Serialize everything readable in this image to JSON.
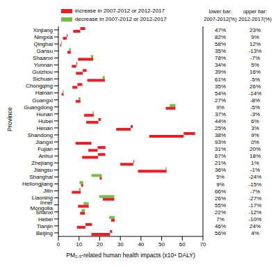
{
  "chart_data": {
    "type": "bar",
    "orientation": "horizontal",
    "grid": false,
    "legend": "top left",
    "xlabel": "PM₂.₅-related human health impacts (x10⁴ DALY)",
    "ylabel": "Province",
    "xlim": [
      0,
      70
    ],
    "xticks": [
      0,
      10,
      20,
      30,
      40,
      50,
      60,
      70
    ],
    "categories": [
      "Xinjiang",
      "Ningxia",
      "Qinghai",
      "Gansu",
      "Shaanxi",
      "Yunnan",
      "Guizhou",
      "Sichuan",
      "Chongqing",
      "Hainan",
      "Guangxi",
      "Guangdong",
      "Hunan",
      "Hubei",
      "Henan",
      "Shandong",
      "Jiangxi",
      "Fujian",
      "Anhui",
      "Zhejiang",
      "Jiangsu",
      "Shanghai",
      "Heilongjiang",
      "Jilin",
      "Liaoning",
      "Inner Mongolia",
      "Shanxi",
      "Hebei",
      "Tianjin",
      "Beijing"
    ],
    "lower_bar": [
      [
        7.2,
        10.6
      ],
      [
        2.2,
        4.0
      ],
      [
        0.9,
        1.4
      ],
      [
        4.4,
        6.0
      ],
      [
        9.5,
        16.9
      ],
      [
        6.5,
        8.7
      ],
      [
        8.5,
        11.8
      ],
      [
        14.0,
        22.5
      ],
      [
        6.8,
        9.2
      ],
      [
        1.6,
        2.5
      ],
      [
        8.4,
        10.7
      ],
      [
        52.0,
        56.7
      ],
      [
        12.5,
        17.1
      ],
      [
        13.5,
        19.4
      ],
      [
        28.0,
        35.0
      ],
      [
        44.0,
        60.7
      ],
      [
        8.3,
        16.0
      ],
      [
        14.5,
        19.0
      ],
      [
        11.5,
        19.2
      ],
      [
        30.0,
        36.3
      ],
      [
        38.5,
        52.4
      ],
      [
        20.0,
        21.0
      ],
      [
        11.0,
        12.0
      ],
      [
        6.5,
        10.8
      ],
      [
        21.5,
        27.1
      ],
      [
        9.5,
        14.7
      ],
      [
        10.5,
        12.8
      ],
      [
        25.5,
        27.3
      ],
      [
        9.0,
        13.1
      ],
      [
        16.0,
        25.0
      ]
    ],
    "upper_bar": [
      [
        10.6,
        13.0
      ],
      [
        4.0,
        4.4
      ],
      [
        1.4,
        1.6
      ],
      [
        6.0,
        5.2
      ],
      [
        16.9,
        15.7
      ],
      [
        8.7,
        9.1
      ],
      [
        11.8,
        13.7
      ],
      [
        22.5,
        21.4
      ],
      [
        9.2,
        11.6
      ],
      [
        2.5,
        2.1
      ],
      [
        10.7,
        9.8
      ],
      [
        56.7,
        53.9
      ],
      [
        17.1,
        16.6
      ],
      [
        19.4,
        20.6
      ],
      [
        35.0,
        36.0
      ],
      [
        60.7,
        66.2
      ],
      [
        16.0,
        16.0
      ],
      [
        19.0,
        22.8
      ],
      [
        19.2,
        22.7
      ],
      [
        36.3,
        36.7
      ],
      [
        52.4,
        51.9
      ],
      [
        21.0,
        16.0
      ],
      [
        12.0,
        10.2
      ],
      [
        10.8,
        10.0
      ],
      [
        27.1,
        19.8
      ],
      [
        14.7,
        12.2
      ],
      [
        12.8,
        11.3
      ],
      [
        27.3,
        24.6
      ],
      [
        13.1,
        16.3
      ],
      [
        25.0,
        26.0
      ]
    ],
    "series": [
      {
        "name": "increase in 2007-2012 or 2012-2017",
        "color": "#ee1d23"
      },
      {
        "name": "decrease in 2007-2012 or 2012-2017",
        "color": "#70bf44"
      }
    ],
    "table": {
      "columns": [
        {
          "title": "lower bar:",
          "subtitle": "2007-2012(%)",
          "values": [
            "47%",
            "82%",
            "58%",
            "35%",
            "78%",
            "34%",
            "39%",
            "61%",
            "35%",
            "54%",
            "27%",
            "9%",
            "37%",
            "44%",
            "25%",
            "38%",
            "93%",
            "31%",
            "67%",
            "21%",
            "36%",
            "5%",
            "9%",
            "66%",
            "26%",
            "55%",
            "22%",
            "7%",
            "46%",
            "56%"
          ]
        },
        {
          "title": "upper bar:",
          "subtitle": "2012-2017(%)",
          "values": [
            "23%",
            "9%",
            "12%",
            "-13%",
            "-7%",
            "5%",
            "16%",
            "-5%",
            "26%",
            "-14%",
            "-8%",
            "-5%",
            "-3%",
            "6%",
            "3%",
            "9%",
            "0%",
            "20%",
            "18%",
            "1%",
            "-1%",
            "-24%",
            "-15%",
            "-7%",
            "-27%",
            "-17%",
            "-12%",
            "-10%",
            "24%",
            "4%"
          ]
        }
      ]
    }
  }
}
